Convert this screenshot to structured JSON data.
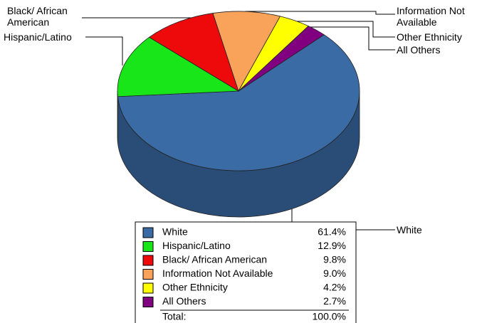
{
  "chart_data": {
    "type": "pie",
    "categories": [
      "White",
      "Hispanic/Latino",
      "Black/ African American",
      "Information Not Available",
      "Other Ethnicity",
      "All Others"
    ],
    "values": [
      61.4,
      12.9,
      9.8,
      9.0,
      4.2,
      2.7
    ],
    "value_labels": [
      "61.4%",
      "12.9%",
      "9.8%",
      "9.0%",
      "4.2%",
      "2.7%"
    ],
    "colors": [
      "#3b6ba5",
      "#19e619",
      "#ee0a0a",
      "#f9a25a",
      "#ffff00",
      "#800080"
    ],
    "total": {
      "label": "Total:",
      "value": "100.0%"
    }
  }
}
